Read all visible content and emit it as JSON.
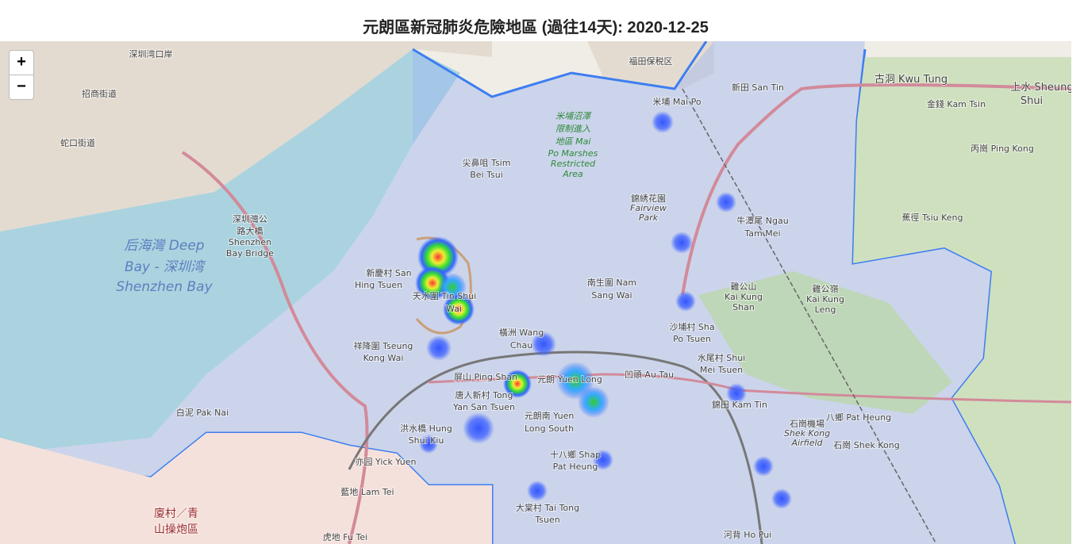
{
  "title": "元朗區新冠肺炎危險地區 (過往14天): 2020-12-25",
  "zoom_controls": [
    "+",
    "−"
  ],
  "places": [
    "深圳湾口岸",
    "招商街道",
    "蛇口街道",
    "后海灣 Deep",
    "Bay - 深圳湾",
    "Shenzhen Bay",
    "深圳灣公",
    "路大橋",
    "Shenzhen",
    "Bay Bridge",
    "福田保税区",
    "新田 San Tin",
    "古洞 Kwu Tung",
    "上水 Sheung",
    "Shui",
    "金錢 Kam Tsin",
    "米埔 Mai Po",
    "丙崗 Ping Kong",
    "牛潭尾 Ngau",
    "Tam Mei",
    "蕉徑 Tsiu Keng",
    "南生圍 Nam",
    "Sang Wai",
    "新慶村 San",
    "Hing Tsuen",
    "天水圍 Tin Shui",
    "Wai",
    "橫洲 Wang",
    "Chau",
    "沙埔村 Sha",
    "Po Tsuen",
    "水尾村 Shui",
    "Mei Tsuen",
    "祥降圍 Tseung",
    "Kong Wai",
    "屏山 Ping Shan",
    "元朗 Yuen Long",
    "凹頭 Au Tau",
    "唐人新村 Tong",
    "Yan San Tsuen",
    "元朗南 Yuen",
    "Long South",
    "錦田 Kam Tin",
    "八鄉 Pat Heung",
    "石崗 Shek Kong",
    "白泥 Pak Nai",
    "洪水橋 Hung",
    "Shui Kiu",
    "十八鄉 Shap",
    "Pat Heung",
    "亦园 Yick Yuen",
    "藍地 Lam Tei",
    "大棠村 Tai Tong",
    "Tsuen",
    "河背 Ho Pui",
    "虎地 Fu Tei",
    "廈村／青",
    "山操炮區",
    "尖鼻咀 Tsim",
    "Bei Tsui",
    "米埔沼澤",
    "限制進入",
    "地區 Mai",
    "Po Marshes",
    "Restricted",
    "Area",
    "雞公山",
    "Kai Kung",
    "Shan",
    "雞公嶺",
    "Kai Kung",
    "Leng",
    "錦綉花園",
    "Fairview",
    "Park",
    "石崗機場",
    "Shek Kong",
    "Airfield"
  ]
}
